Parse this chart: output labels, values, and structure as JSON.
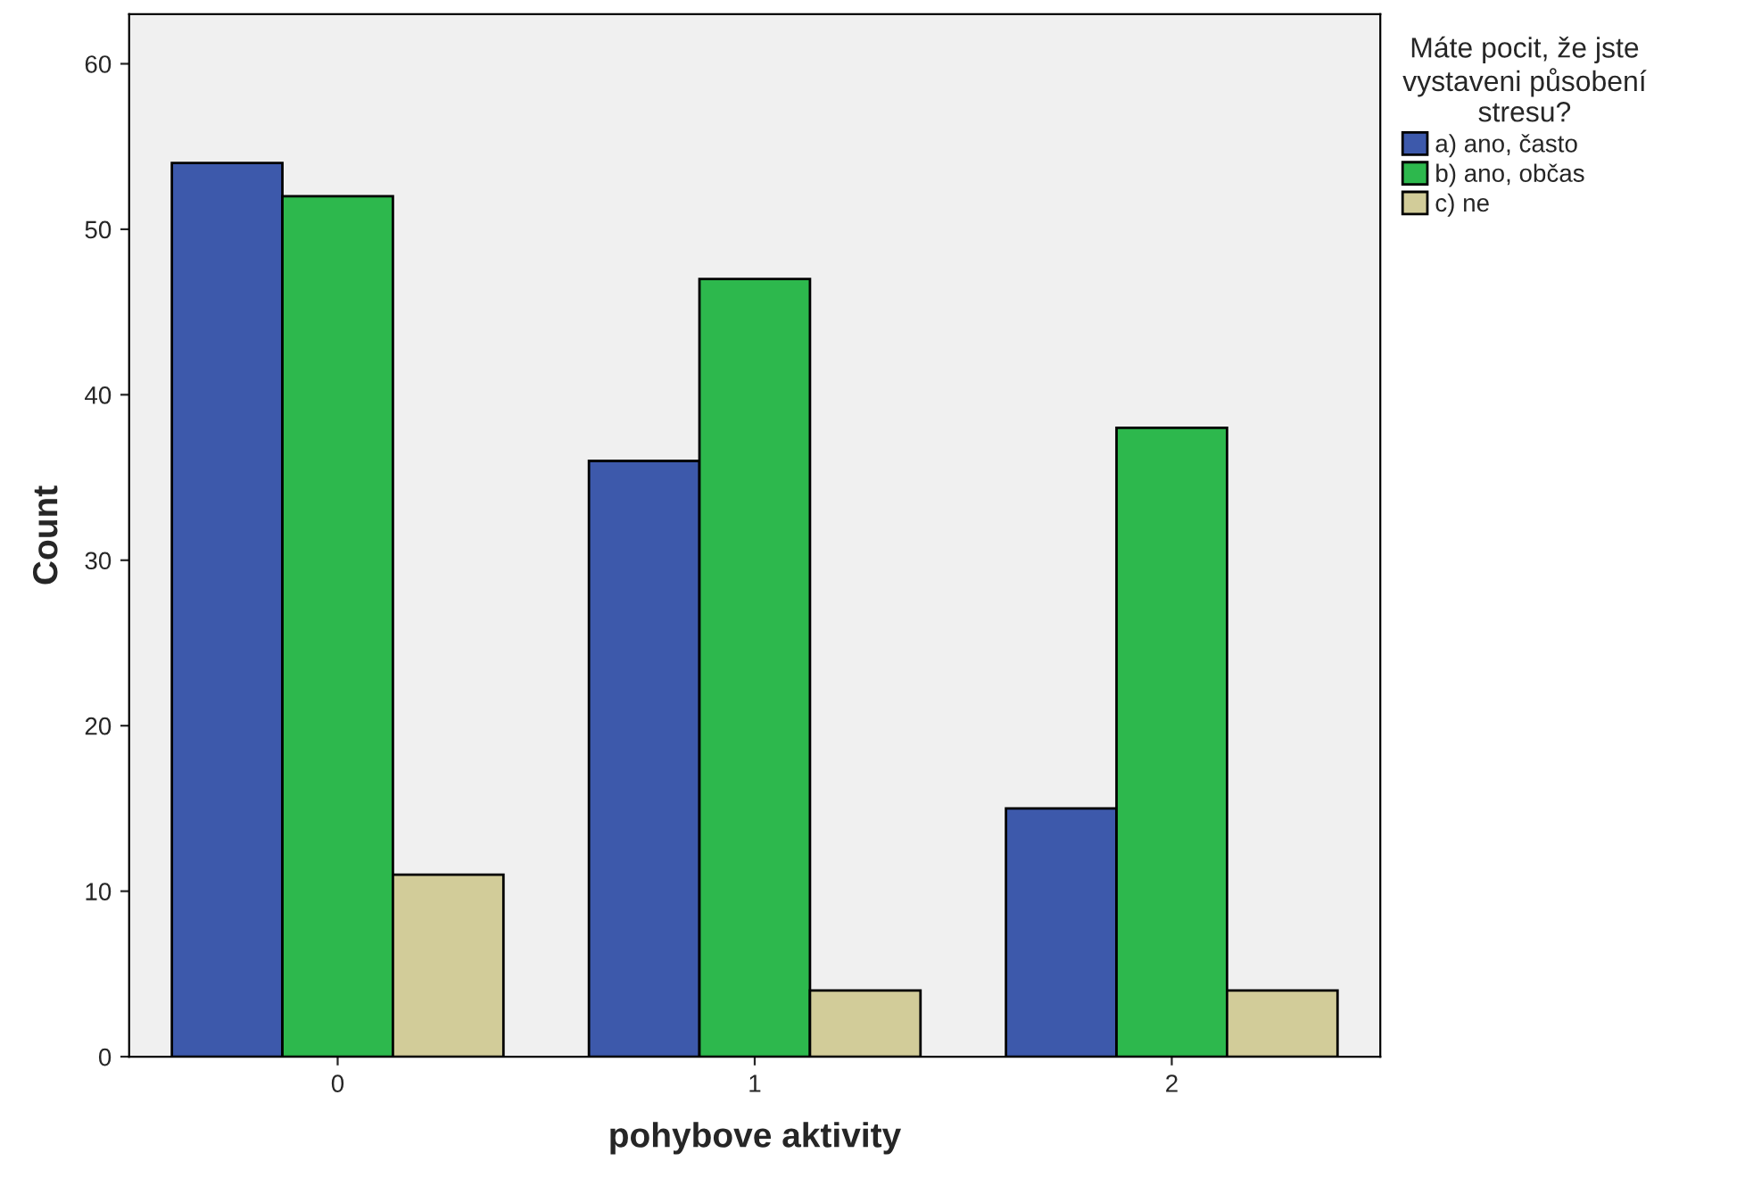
{
  "chart_data": {
    "type": "bar",
    "xlabel": "pohybove aktivity",
    "ylabel": "Count",
    "legend_title": "Máte pocit, že jste\nvystaveni působení\nstresu?",
    "categories": [
      "0",
      "1",
      "2"
    ],
    "series": [
      {
        "name": "a) ano, často",
        "color": "#3d59ab",
        "values": [
          54,
          36,
          15
        ]
      },
      {
        "name": "b) ano, občas",
        "color": "#2db84d",
        "values": [
          52,
          47,
          38
        ]
      },
      {
        "name": "c) ne",
        "color": "#d2cc99",
        "values": [
          11,
          4,
          4
        ]
      }
    ],
    "ylim": [
      0,
      63
    ],
    "yticks": [
      0,
      10,
      20,
      30,
      40,
      50,
      60
    ],
    "grid": false,
    "legend": "top right"
  }
}
